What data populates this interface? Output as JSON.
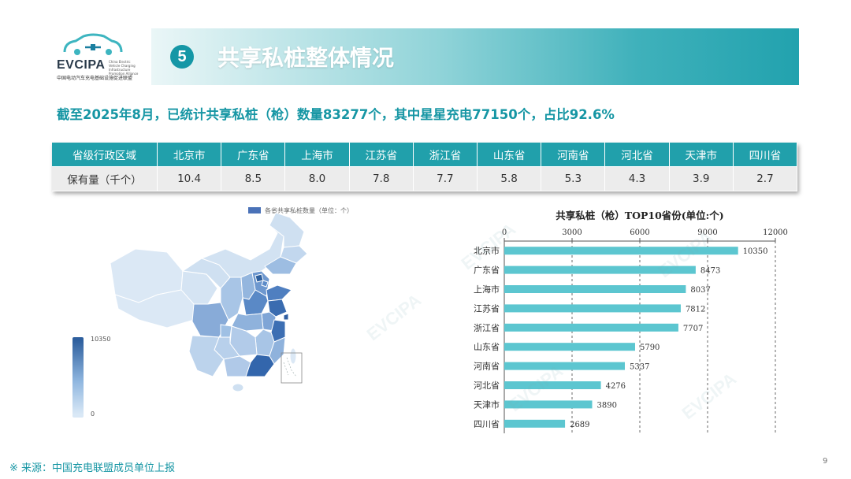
{
  "logo": {
    "name": "EVCIPA",
    "subtitle": "China Electric Vehicle Charging Infrastructure Promotion Alliance",
    "cn_name": "中国电动汽车充电基础设施促进联盟"
  },
  "header": {
    "section_number": "5",
    "title": "共享私桩整体情况"
  },
  "summary": "截至2025年8月，已统计共享私桩（枪）数量83277个，其中星星充电77150个，占比92.6%",
  "table": {
    "header_label": "省级行政区域",
    "row_label": "保有量（千个）",
    "provinces": [
      "北京市",
      "广东省",
      "上海市",
      "江苏省",
      "浙江省",
      "山东省",
      "河南省",
      "河北省",
      "天津市",
      "四川省"
    ],
    "values": [
      "10.4",
      "8.5",
      "8.0",
      "7.8",
      "7.7",
      "5.8",
      "5.3",
      "4.3",
      "3.9",
      "2.7"
    ]
  },
  "map": {
    "legend_label": "各省共享私桩数量（单位：个）",
    "visual_max": "10350",
    "visual_min": "0",
    "color_high": "#2e5f9e",
    "color_low": "#d9e8f6"
  },
  "chart_data": {
    "type": "bar",
    "orientation": "horizontal",
    "title": "共享私桩（枪）TOP10省份(单位:个)",
    "categories": [
      "北京市",
      "广东省",
      "上海市",
      "江苏省",
      "浙江省",
      "山东省",
      "河南省",
      "河北省",
      "天津市",
      "四川省"
    ],
    "values": [
      10350,
      8473,
      8037,
      7812,
      7707,
      5790,
      5337,
      4276,
      3890,
      2689
    ],
    "xlim": [
      0,
      12000
    ],
    "x_ticks": [
      "0",
      "3000",
      "6000",
      "9000",
      "12000"
    ],
    "axis_position": "top",
    "grid": "dashed vertical",
    "bar_color": "#5cc6d0"
  },
  "source": "※ 来源：中国充电联盟成员单位上报",
  "page_number": "9",
  "watermark": "EVCIPA"
}
